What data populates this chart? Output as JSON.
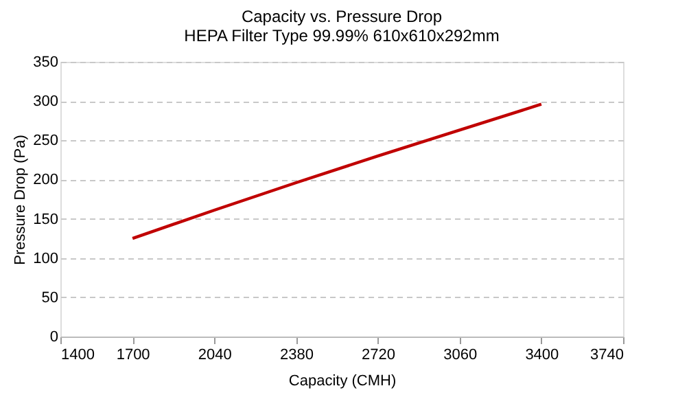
{
  "chart_data": {
    "type": "line",
    "title": "Capacity vs. Pressure Drop",
    "subtitle": "HEPA Filter Type 99.99% 610x610x292mm",
    "xlabel": "Capacity (CMH)",
    "ylabel": "Pressure Drop (Pa)",
    "x": [
      1700,
      2040,
      2380,
      2720,
      3060,
      3400
    ],
    "series": [
      {
        "color": "#c00000",
        "values": [
          125,
          161,
          196,
          230,
          263,
          296
        ]
      }
    ],
    "xlim": [
      1400,
      3740
    ],
    "xticks": [
      1400,
      1700,
      2040,
      2380,
      2720,
      3060,
      3400,
      3740
    ],
    "ylim": [
      0,
      350
    ],
    "yticks": [
      0,
      50,
      100,
      150,
      200,
      250,
      300,
      350
    ],
    "grid": "y",
    "marker": "none",
    "line_style": "solid"
  }
}
